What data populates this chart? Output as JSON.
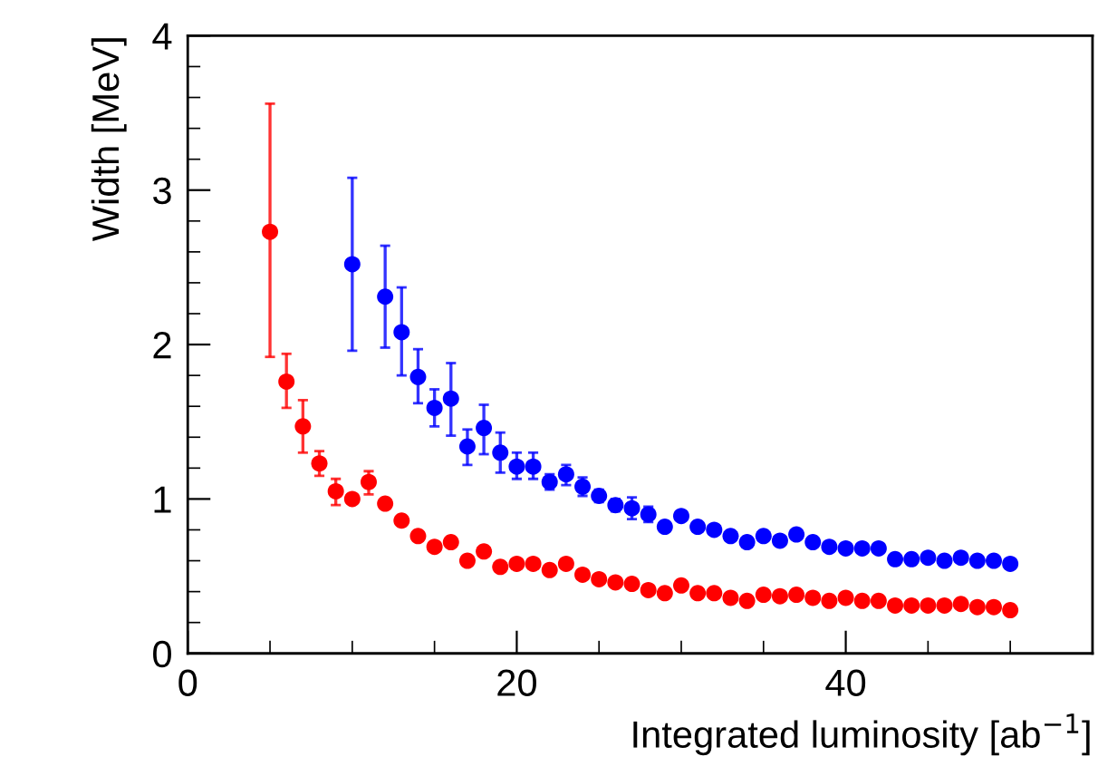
{
  "chart_data": {
    "type": "scatter",
    "xlabel": "Integrated luminosity [ab$^{−1}$]",
    "ylabel": "Width [MeV]",
    "xlim": [
      0,
      55
    ],
    "ylim": [
      0,
      4
    ],
    "xticks": [
      0,
      {
        "value": 5,
        "label": null
      },
      {
        "value": 10,
        "label": null
      },
      {
        "value": 15,
        "label": null
      },
      20,
      {
        "value": 25,
        "label": null
      },
      {
        "value": 30,
        "label": null
      },
      {
        "value": 35,
        "label": null
      },
      40,
      {
        "value": 45,
        "label": null
      },
      {
        "value": 50,
        "label": null
      }
    ],
    "yticks": [
      0,
      {
        "value": 0.2,
        "label": null
      },
      {
        "value": 0.4,
        "label": null
      },
      {
        "value": 0.6,
        "label": null
      },
      {
        "value": 0.8,
        "label": null
      },
      1,
      {
        "value": 1.2,
        "label": null
      },
      {
        "value": 1.4,
        "label": null
      },
      {
        "value": 1.6,
        "label": null
      },
      {
        "value": 1.8,
        "label": null
      },
      2,
      {
        "value": 2.2,
        "label": null
      },
      {
        "value": 2.4,
        "label": null
      },
      {
        "value": 2.6,
        "label": null
      },
      {
        "value": 2.8,
        "label": null
      },
      3,
      {
        "value": 3.2,
        "label": null
      },
      {
        "value": 3.4,
        "label": null
      },
      {
        "value": 3.6,
        "label": null
      },
      {
        "value": 3.8,
        "label": null
      },
      4
    ],
    "marker": "circle",
    "grid": false,
    "legend": false,
    "series": [
      {
        "color": "#ff0000",
        "x": [
          5,
          6,
          7,
          8,
          9,
          10,
          11,
          12,
          13,
          14,
          15,
          16,
          17,
          18,
          19,
          20,
          21,
          22,
          23,
          24,
          25,
          26,
          27,
          28,
          29,
          30,
          31,
          32,
          33,
          34,
          35,
          36,
          37,
          38,
          39,
          40,
          41,
          42,
          43,
          44,
          45,
          46,
          47,
          48,
          49,
          50
        ],
        "values": [
          2.73,
          1.76,
          1.47,
          1.23,
          1.05,
          1.0,
          1.11,
          0.97,
          0.86,
          0.76,
          0.69,
          0.72,
          0.6,
          0.66,
          0.56,
          0.58,
          0.58,
          0.54,
          0.58,
          0.51,
          0.48,
          0.46,
          0.45,
          0.41,
          0.39,
          0.44,
          0.39,
          0.39,
          0.36,
          0.34,
          0.38,
          0.37,
          0.38,
          0.36,
          0.34,
          0.36,
          0.34,
          0.34,
          0.31,
          0.31,
          0.31,
          0.31,
          0.32,
          0.3,
          0.3,
          0.28
        ],
        "errors": [
          [
            1.92,
            3.56
          ],
          [
            1.59,
            1.94
          ],
          [
            1.3,
            1.64
          ],
          [
            1.15,
            1.31
          ],
          [
            0.96,
            1.13
          ],
          null,
          [
            1.03,
            1.18
          ],
          null,
          null,
          null,
          null,
          null,
          null,
          null,
          null,
          null,
          null,
          null,
          null,
          null,
          null,
          null,
          null,
          null,
          null,
          null,
          null,
          null,
          null,
          null,
          null,
          null,
          null,
          null,
          null,
          null,
          null,
          null,
          null,
          null,
          null,
          null,
          null,
          null,
          null,
          null
        ]
      },
      {
        "color": "#0000ff",
        "x": [
          10,
          12,
          13,
          14,
          15,
          16,
          17,
          18,
          19,
          20,
          21,
          22,
          23,
          24,
          25,
          26,
          27,
          28,
          29,
          30,
          31,
          32,
          33,
          34,
          35,
          36,
          37,
          38,
          39,
          40,
          41,
          42,
          43,
          44,
          45,
          46,
          47,
          48,
          49,
          50
        ],
        "values": [
          2.52,
          2.31,
          2.08,
          1.79,
          1.59,
          1.65,
          1.34,
          1.46,
          1.3,
          1.21,
          1.21,
          1.11,
          1.16,
          1.08,
          1.02,
          0.96,
          0.94,
          0.9,
          0.82,
          0.89,
          0.82,
          0.8,
          0.76,
          0.72,
          0.76,
          0.73,
          0.77,
          0.72,
          0.69,
          0.68,
          0.68,
          0.68,
          0.61,
          0.61,
          0.62,
          0.6,
          0.62,
          0.6,
          0.6,
          0.58
        ],
        "errors": [
          [
            1.96,
            3.08
          ],
          [
            1.98,
            2.64
          ],
          [
            1.8,
            2.37
          ],
          [
            1.62,
            1.97
          ],
          [
            1.47,
            1.71
          ],
          [
            1.41,
            1.88
          ],
          [
            1.22,
            1.45
          ],
          [
            1.29,
            1.61
          ],
          [
            1.17,
            1.43
          ],
          [
            1.13,
            1.3
          ],
          [
            1.13,
            1.3
          ],
          [
            1.06,
            1.16
          ],
          [
            1.09,
            1.22
          ],
          [
            1.02,
            1.14
          ],
          [
            0.98,
            1.06
          ],
          [
            0.92,
            1.0
          ],
          [
            0.87,
            1.01
          ],
          [
            0.85,
            0.95
          ],
          null,
          null,
          null,
          null,
          null,
          null,
          null,
          null,
          null,
          null,
          null,
          null,
          null,
          null,
          null,
          null,
          null,
          null,
          null,
          null,
          null,
          null
        ]
      }
    ]
  }
}
